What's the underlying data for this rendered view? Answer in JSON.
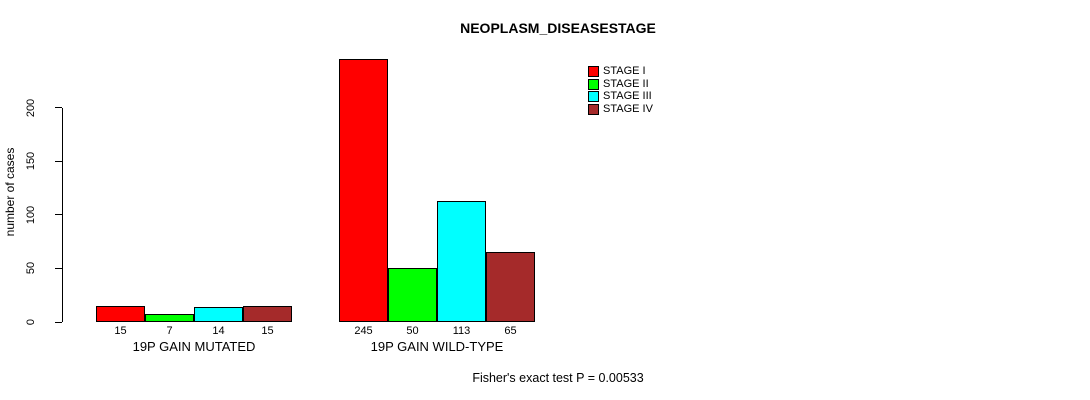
{
  "title": "NEOPLASM_DISEASESTAGE",
  "footer": "Fisher's exact test P = 0.00533",
  "chart_data": {
    "type": "bar",
    "title": "NEOPLASM_DISEASESTAGE",
    "xlabel": "",
    "ylabel": "number of cases",
    "categories": [
      "19P GAIN MUTATED",
      "19P GAIN WILD-TYPE"
    ],
    "series": [
      {
        "name": "STAGE I",
        "color": "#FF0000",
        "values": [
          15,
          245
        ]
      },
      {
        "name": "STAGE II",
        "color": "#00FF00",
        "values": [
          7,
          50
        ]
      },
      {
        "name": "STAGE III",
        "color": "#00FFFF",
        "values": [
          14,
          113
        ]
      },
      {
        "name": "STAGE IV",
        "color": "#A52A2A",
        "values": [
          15,
          65
        ]
      }
    ],
    "bar_value_labels": [
      [
        15,
        7,
        14,
        15
      ],
      [
        245,
        50,
        113,
        65
      ]
    ],
    "yticks": [
      0,
      50,
      100,
      150,
      200
    ],
    "ylim": [
      0,
      245
    ],
    "grid": false,
    "legend_position": "top-right",
    "annotation": "Fisher's exact test P = 0.00533"
  }
}
